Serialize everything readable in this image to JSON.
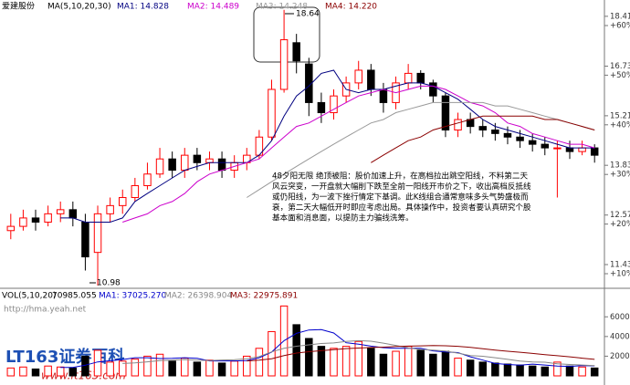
{
  "chart_data": [
    {
      "type": "candlestick",
      "title": "爱建股份",
      "legend_title": "MA(5,10,20,30)",
      "log": true,
      "ylim": [
        10.94,
        18.83
      ],
      "yticks": [
        18.41,
        16.73,
        15.21,
        13.83,
        12.57,
        11.43
      ],
      "y2lim": [
        7.24,
        64.23
      ],
      "y2ticks": [
        {
          "value": 60,
          "label": "+60%"
        },
        {
          "value": 50,
          "label": "+50%"
        },
        {
          "value": 40,
          "label": "+40%"
        },
        {
          "value": 30,
          "label": "+30%"
        },
        {
          "value": 20,
          "label": "+20%"
        },
        {
          "value": 10,
          "label": "+10%"
        }
      ],
      "up_color": "#ff0000",
      "down_color": "#000000",
      "open": [
        12.2,
        12.3,
        12.5,
        12.4,
        12.6,
        12.7,
        12.4,
        11.7,
        12.6,
        12.8,
        13.0,
        13.3,
        13.6,
        14.0,
        13.7,
        14.1,
        13.9,
        14.0,
        13.7,
        13.9,
        14.1,
        14.6,
        16.0,
        17.5,
        16.8,
        15.6,
        15.3,
        15.8,
        16.2,
        16.6,
        16.0,
        15.6,
        16.2,
        16.5,
        16.2,
        15.8,
        14.8,
        15.1,
        14.9,
        14.8,
        14.7,
        14.6,
        14.5,
        14.4,
        14.3,
        14.3,
        14.2,
        14.3
      ],
      "high": [
        12.6,
        12.7,
        12.7,
        12.8,
        12.9,
        12.9,
        12.6,
        12.8,
        13.0,
        13.2,
        13.5,
        13.9,
        14.3,
        14.2,
        14.3,
        14.3,
        14.2,
        14.2,
        14.1,
        14.3,
        14.8,
        16.3,
        18.64,
        17.8,
        17.0,
        15.9,
        16.0,
        16.4,
        16.9,
        16.8,
        16.2,
        16.4,
        16.8,
        16.6,
        16.3,
        15.9,
        15.3,
        15.3,
        15.1,
        15.0,
        14.9,
        14.8,
        14.7,
        14.6,
        14.5,
        14.5,
        14.5,
        14.4
      ],
      "low": [
        12.0,
        12.2,
        12.2,
        12.3,
        12.4,
        12.3,
        11.3,
        10.98,
        12.4,
        12.6,
        12.9,
        13.2,
        13.5,
        13.5,
        13.5,
        13.7,
        13.7,
        13.5,
        13.5,
        13.7,
        14.0,
        14.5,
        15.9,
        16.5,
        15.2,
        15.0,
        15.1,
        15.6,
        16.0,
        15.8,
        15.3,
        15.4,
        16.0,
        16.0,
        15.6,
        14.6,
        14.6,
        14.7,
        14.6,
        14.5,
        14.4,
        14.3,
        14.2,
        14.1,
        13.0,
        14.0,
        14.1,
        13.9
      ],
      "close": [
        12.3,
        12.5,
        12.4,
        12.6,
        12.7,
        12.5,
        11.6,
        12.6,
        12.8,
        13.0,
        13.3,
        13.6,
        14.0,
        13.7,
        14.1,
        13.9,
        14.0,
        13.7,
        13.9,
        14.1,
        14.6,
        16.0,
        17.6,
        16.9,
        15.6,
        15.3,
        15.8,
        16.2,
        16.6,
        16.0,
        15.6,
        16.2,
        16.5,
        16.2,
        15.8,
        14.8,
        15.1,
        14.9,
        14.8,
        14.7,
        14.6,
        14.5,
        14.4,
        14.3,
        14.3,
        14.2,
        14.3,
        14.1
      ],
      "series": [
        {
          "name": "MA1: 14.828",
          "color": "#000080",
          "values": [
            null,
            null,
            null,
            null,
            12.5,
            12.5,
            12.4,
            12.4,
            12.4,
            12.5,
            12.9,
            13.1,
            13.3,
            13.5,
            13.7,
            13.8,
            13.9,
            13.9,
            13.9,
            13.9,
            14.1,
            14.5,
            15.2,
            15.8,
            16.1,
            16.5,
            16.6,
            16.0,
            15.9,
            16.0,
            16.0,
            16.1,
            16.2,
            16.2,
            16.1,
            15.9,
            15.7,
            15.4,
            15.1,
            14.9,
            14.8,
            14.7,
            14.6,
            14.5,
            14.4,
            14.3,
            14.3,
            14.3
          ]
        },
        {
          "name": "MA2: 14.489",
          "color": "#cc00cc",
          "values": [
            null,
            null,
            null,
            null,
            null,
            null,
            null,
            null,
            null,
            12.4,
            12.5,
            12.6,
            12.8,
            12.9,
            13.1,
            13.4,
            13.6,
            13.7,
            13.8,
            13.9,
            14.0,
            14.3,
            14.6,
            14.9,
            15.0,
            15.2,
            15.4,
            15.6,
            15.8,
            15.9,
            16.0,
            15.9,
            16.0,
            16.1,
            16.1,
            16.0,
            15.8,
            15.6,
            15.5,
            15.3,
            15.0,
            14.9,
            14.7,
            14.6,
            14.5,
            14.4,
            14.4,
            14.3
          ]
        },
        {
          "name": "MA3: 14.248",
          "color": "#999999",
          "values": [
            null,
            null,
            null,
            null,
            null,
            null,
            null,
            null,
            null,
            null,
            null,
            null,
            null,
            null,
            null,
            null,
            null,
            null,
            null,
            13.0,
            13.2,
            13.4,
            13.6,
            13.8,
            14.0,
            14.2,
            14.4,
            14.6,
            14.8,
            15.0,
            15.1,
            15.3,
            15.4,
            15.5,
            15.6,
            15.6,
            15.6,
            15.6,
            15.6,
            15.5,
            15.5,
            15.4,
            15.3,
            15.2,
            15.1,
            15.0,
            14.9,
            14.8
          ]
        },
        {
          "name": "MA4: 14.220",
          "color": "#8b0000",
          "values": [
            null,
            null,
            null,
            null,
            null,
            null,
            null,
            null,
            null,
            null,
            null,
            null,
            null,
            null,
            null,
            null,
            null,
            null,
            null,
            null,
            null,
            null,
            null,
            null,
            null,
            null,
            null,
            null,
            null,
            13.9,
            14.1,
            14.3,
            14.5,
            14.6,
            14.8,
            14.9,
            15.0,
            15.1,
            15.2,
            15.2,
            15.2,
            15.2,
            15.2,
            15.1,
            15.1,
            15.0,
            14.9,
            14.8
          ]
        }
      ],
      "annotations": [
        "18.64",
        "10.98"
      ],
      "note": [
        "48夕阳无限  绝顶被阻：股价加速上升，在高档拉出跳空阳线，不料第二天",
        "风云突变，一开盘就大幅削下跌至全前一阳线开市价之下，收出高档反抵线",
        "或仍阳线，为一波下挫行情定下基调。此K线组合通常意味多头气势盛极而",
        "衰，第二天大幅低开时即应考虑出局。具体操作中，投资者要认真研究个股",
        "基本面和消息面，以提防主力骗线洗筹。"
      ]
    },
    {
      "type": "bar",
      "title": "VOL(5,10,20)",
      "subtitle": "70985.055",
      "ylim": [
        0,
        76000
      ],
      "yticks": [
        60000,
        40000,
        20000
      ],
      "values": [
        8000,
        9000,
        7000,
        10000,
        9000,
        8000,
        20000,
        26000,
        14000,
        15000,
        17000,
        20000,
        22000,
        15000,
        18000,
        14000,
        16000,
        13000,
        15000,
        20000,
        28000,
        45000,
        70985,
        52000,
        38000,
        30000,
        28000,
        30000,
        35000,
        28000,
        22000,
        25000,
        30000,
        26000,
        22000,
        25000,
        18000,
        16000,
        14000,
        13000,
        12000,
        11000,
        10000,
        9000,
        14000,
        10000,
        9000,
        8000
      ],
      "series": [
        {
          "name": "MA1: 37025.270",
          "color": "#0000cc",
          "values": [
            null,
            null,
            null,
            null,
            8600,
            8600,
            10800,
            14200,
            15400,
            16600,
            18400,
            18400,
            17600,
            17800,
            18400,
            17800,
            15200,
            15200,
            15200,
            15600,
            18400,
            24200,
            35800,
            43200,
            46600,
            47000,
            43600,
            33600,
            32200,
            30200,
            28600,
            28000,
            28000,
            28000,
            25400,
            24400,
            23600,
            19400,
            16000,
            12600,
            11600,
            10800,
            12000,
            11000,
            10000,
            9600,
            10400,
            10200
          ]
        },
        {
          "name": "MA2: 26398.904",
          "color": "#888888",
          "values": [
            null,
            null,
            null,
            null,
            null,
            null,
            null,
            null,
            null,
            12600,
            13200,
            14300,
            15500,
            16000,
            16600,
            16000,
            15600,
            16100,
            16400,
            17300,
            19600,
            24400,
            28000,
            30100,
            31500,
            32900,
            33500,
            35000,
            35800,
            35200,
            33300,
            31000,
            28400,
            26800,
            26200,
            25300,
            23100,
            20700,
            19900,
            18400,
            16800,
            15000,
            14100,
            13900,
            12300,
            11600,
            11000,
            10400
          ]
        },
        {
          "name": "MA3: 22975.891",
          "color": "#8b0000",
          "values": [
            null,
            null,
            null,
            null,
            null,
            null,
            null,
            null,
            null,
            null,
            null,
            null,
            null,
            null,
            null,
            null,
            null,
            null,
            null,
            15200,
            16000,
            17400,
            20600,
            23200,
            24600,
            25600,
            26600,
            27700,
            28300,
            28800,
            29200,
            29800,
            30200,
            30500,
            30800,
            30600,
            30000,
            29000,
            27600,
            26200,
            25000,
            24000,
            22800,
            21500,
            20500,
            19400,
            18000,
            16800
          ]
        }
      ]
    }
  ],
  "watermark": "http://hma.yeah.net",
  "logo_title": "LT163证券百科",
  "logo_url": "www.lt163.com"
}
